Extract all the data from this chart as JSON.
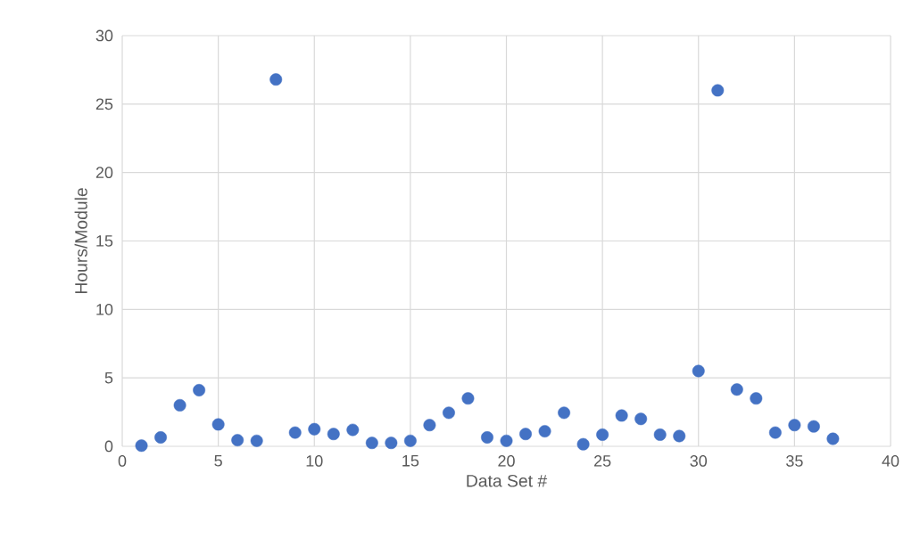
{
  "chart_data": {
    "type": "scatter",
    "xlabel": "Data Set #",
    "ylabel": "Hours/Module",
    "x": [
      1,
      2,
      3,
      4,
      5,
      6,
      7,
      8,
      9,
      10,
      11,
      12,
      13,
      14,
      15,
      16,
      17,
      18,
      19,
      20,
      21,
      22,
      23,
      24,
      25,
      26,
      27,
      28,
      29,
      30,
      31,
      32,
      33,
      34,
      35,
      36,
      37
    ],
    "series": [
      {
        "color": "#4472c4",
        "values": [
          0.05,
          0.65,
          3.0,
          4.1,
          1.6,
          0.45,
          0.4,
          26.8,
          1.0,
          1.25,
          0.9,
          1.2,
          0.25,
          0.25,
          0.4,
          1.55,
          2.45,
          3.5,
          0.65,
          0.4,
          0.9,
          1.1,
          2.45,
          0.15,
          0.85,
          2.25,
          2.0,
          0.85,
          0.75,
          5.5,
          26.0,
          4.15,
          3.5,
          1.0,
          1.55,
          1.45,
          0.55
        ]
      }
    ],
    "xlim": [
      0,
      40
    ],
    "xticks": [
      0,
      5,
      10,
      15,
      20,
      25,
      30,
      35,
      40
    ],
    "ylim": [
      0,
      30
    ],
    "yticks": [
      0,
      5,
      10,
      15,
      20,
      25,
      30
    ],
    "grid": true,
    "marker": "circle"
  }
}
